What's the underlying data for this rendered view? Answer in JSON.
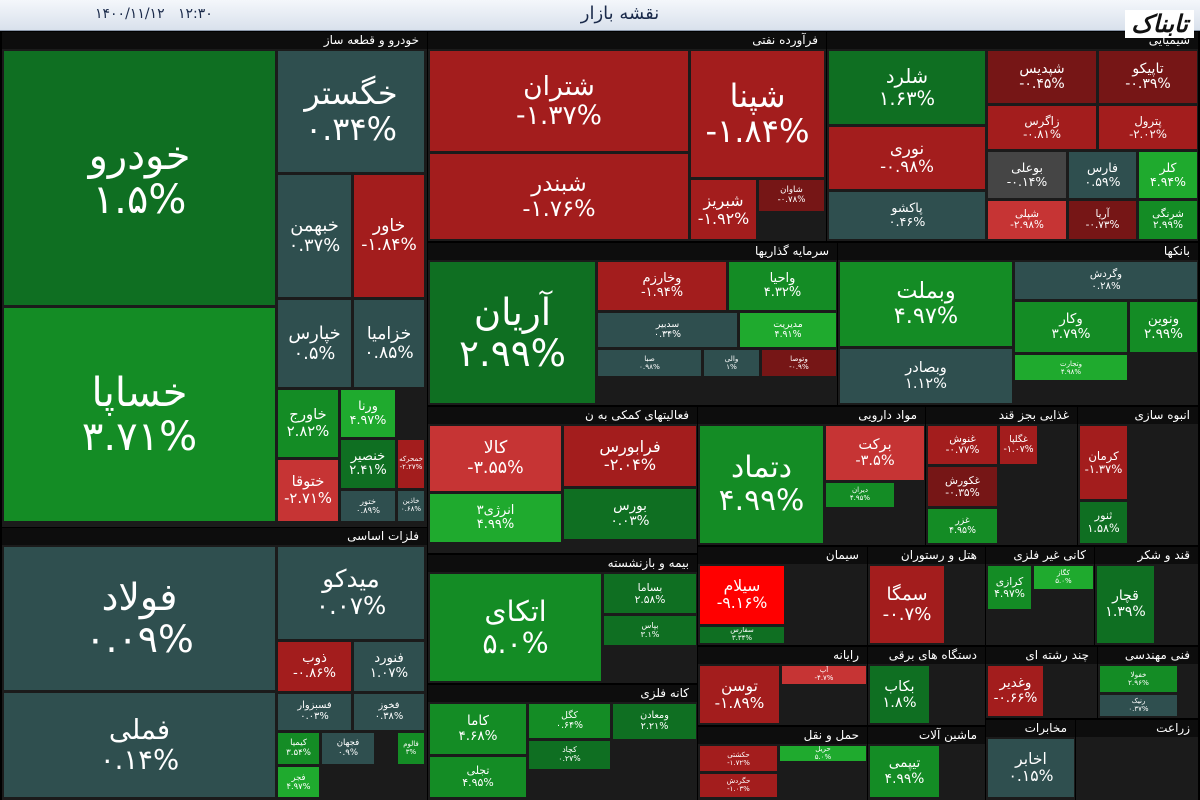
{
  "header": {
    "title": "نقشه بازار",
    "datetime": "۱۴۰۰/۱۱/۱۲   ۱۲:۳۰",
    "logo": "تابناک"
  },
  "sectors": [
    {
      "name": "خودرو و قطعه ساز",
      "tiles": [
        {
          "symbol": "خودرو",
          "change": "۱.۵%"
        },
        {
          "symbol": "خساپا",
          "change": "۳.۷۱%"
        },
        {
          "symbol": "خگستر",
          "change": "۰.۳۴%"
        },
        {
          "symbol": "خبهمن",
          "change": "۰.۳۷%"
        },
        {
          "symbol": "خاور",
          "change": "-۱.۸۴%"
        },
        {
          "symbol": "خپارس",
          "change": "۰.۵%"
        },
        {
          "symbol": "خزامیا",
          "change": "۰.۸۵%"
        },
        {
          "symbol": "خاورج",
          "change": "۲.۸۲%"
        },
        {
          "symbol": "ورنا",
          "change": "۴.۹۷%"
        },
        {
          "symbol": "خنصیر",
          "change": "۲.۴۱%"
        },
        {
          "symbol": "خمحرکه",
          "change": "-۲.۲۷%"
        },
        {
          "symbol": "ختوقا",
          "change": "-۲.۷۱%"
        },
        {
          "symbol": "ختور",
          "change": "۰.۸۹%"
        },
        {
          "symbol": "خاذین",
          "change": "۰.۶۸%"
        }
      ]
    },
    {
      "name": "فلزات اساسی",
      "tiles": [
        {
          "symbol": "فولاد",
          "change": "۰.۰۹%"
        },
        {
          "symbol": "فملی",
          "change": "۰.۱۴%"
        },
        {
          "symbol": "میدکو",
          "change": "۰.۰۷%"
        },
        {
          "symbol": "ذوب",
          "change": "-۰.۸۶%"
        },
        {
          "symbol": "فنورد",
          "change": "۱.۰۷%"
        },
        {
          "symbol": "فسبزوار",
          "change": "۰.۰۳%"
        },
        {
          "symbol": "فخوز",
          "change": "۰.۳۸%"
        },
        {
          "symbol": "کیمیا",
          "change": "۳.۵۴%"
        },
        {
          "symbol": "فجهان",
          "change": "۰.۹%"
        },
        {
          "symbol": "فالوم",
          "change": "۳%"
        },
        {
          "symbol": "فجر",
          "change": "۴.۹۷%"
        }
      ]
    },
    {
      "name": "فرآورده نفتی",
      "tiles": [
        {
          "symbol": "شتران",
          "change": "-۱.۳۷%"
        },
        {
          "symbol": "شبندر",
          "change": "-۱.۷۶%"
        },
        {
          "symbol": "شپنا",
          "change": "-۱.۸۴%"
        },
        {
          "symbol": "شبریز",
          "change": "-۱.۹۲%"
        },
        {
          "symbol": "شاوان",
          "change": "-۰.۷۸%"
        }
      ]
    },
    {
      "name": "شیمیایی",
      "tiles": [
        {
          "symbol": "شلرد",
          "change": "۱.۶۳%"
        },
        {
          "symbol": "نوری",
          "change": "-۰.۹۸%"
        },
        {
          "symbol": "پاکشو",
          "change": "۰.۴۶%"
        },
        {
          "symbol": "شپدیس",
          "change": "-۰.۴۵%"
        },
        {
          "symbol": "تاپیکو",
          "change": "-۰.۳۹%"
        },
        {
          "symbol": "زاگرس",
          "change": "-۰.۸۱%"
        },
        {
          "symbol": "پترول",
          "change": "-۲.۰۲%"
        },
        {
          "symbol": "بوعلی",
          "change": "-۰.۱۴%"
        },
        {
          "symbol": "فارس",
          "change": "۰.۵۹%"
        },
        {
          "symbol": "کلر",
          "change": "۴.۹۴%"
        },
        {
          "symbol": "شپلی",
          "change": "-۲.۹۸%"
        },
        {
          "symbol": "آریا",
          "change": "-۰.۷۳%"
        },
        {
          "symbol": "شرنگی",
          "change": "۲.۹۹%"
        }
      ]
    },
    {
      "name": "سرمایه گذاریها",
      "tiles": [
        {
          "symbol": "آریان",
          "change": "۲.۹۹%"
        },
        {
          "symbol": "وخارزم",
          "change": "-۱.۹۴%"
        },
        {
          "symbol": "واحیا",
          "change": "۴.۳۲%"
        },
        {
          "symbol": "سدبیر",
          "change": "۰.۳۴%"
        },
        {
          "symbol": "مدیریت",
          "change": "۴.۹۱%"
        },
        {
          "symbol": "صبا",
          "change": "۰.۹۸%"
        },
        {
          "symbol": "والی",
          "change": "۱%"
        },
        {
          "symbol": "وتوصا",
          "change": "-۰.۹%"
        }
      ]
    },
    {
      "name": "بانکها",
      "tiles": [
        {
          "symbol": "وبملت",
          "change": "۴.۹۷%"
        },
        {
          "symbol": "وبصادر",
          "change": "۱.۱۲%"
        },
        {
          "symbol": "وگردش",
          "change": "۰.۲۸%"
        },
        {
          "symbol": "وکار",
          "change": "۳.۷۹%"
        },
        {
          "symbol": "ونوین",
          "change": "۲.۹۹%"
        },
        {
          "symbol": "وتجارت",
          "change": "۴.۹۸%"
        }
      ]
    },
    {
      "name": "فعالیتهای کمکی به ن",
      "tiles": [
        {
          "symbol": "کالا",
          "change": "-۳.۵۵%"
        },
        {
          "symbol": "فرابورس",
          "change": "-۲.۰۴%"
        },
        {
          "symbol": "انرژی۳",
          "change": "۴.۹۹%"
        },
        {
          "symbol": "بورس",
          "change": "۰.۰۳%"
        }
      ]
    },
    {
      "name": "بیمه و بازنشسته",
      "tiles": [
        {
          "symbol": "اتکای",
          "change": "۵.۰%"
        },
        {
          "symbol": "بساما",
          "change": "۲.۵۸%"
        },
        {
          "symbol": "بپاس",
          "change": "۳.۱%"
        }
      ]
    },
    {
      "name": "کانه فلزی",
      "tiles": [
        {
          "symbol": "کاما",
          "change": "۴.۶۸%"
        },
        {
          "symbol": "کگل",
          "change": "۰.۶۴%"
        },
        {
          "symbol": "ومعادن",
          "change": "۲.۲۱%"
        },
        {
          "symbol": "کچاد",
          "change": "۰.۲۷%"
        },
        {
          "symbol": "تجلی",
          "change": "۴.۹۵%"
        }
      ]
    },
    {
      "name": "مواد دارویی",
      "tiles": [
        {
          "symbol": "دتماد",
          "change": "۴.۹۹%"
        },
        {
          "symbol": "برکت",
          "change": "-۳.۵%"
        },
        {
          "symbol": "دیران",
          "change": "۴.۹۵%"
        }
      ]
    },
    {
      "name": "غذایی بجز قند",
      "tiles": [
        {
          "symbol": "غنوش",
          "change": "-۰.۷۷%"
        },
        {
          "symbol": "غگلپا",
          "change": "-۱.۰۷%"
        },
        {
          "symbol": "غکورش",
          "change": "-۰.۳۵%"
        },
        {
          "symbol": "غزر",
          "change": "۴.۹۵%"
        }
      ]
    },
    {
      "name": "انبوه سازی",
      "tiles": [
        {
          "symbol": "کرمان",
          "change": "-۱.۳۷%"
        },
        {
          "symbol": "ثنور",
          "change": "۱.۵۸%"
        }
      ]
    },
    {
      "name": "سیمان",
      "tiles": [
        {
          "symbol": "سیلام",
          "change": "-۹.۱۶%"
        },
        {
          "symbol": "سفارس",
          "change": "۳.۳۴%"
        }
      ]
    },
    {
      "name": "هتل و رستوران",
      "tiles": [
        {
          "symbol": "سمگا",
          "change": "-۰.۷%"
        }
      ]
    },
    {
      "name": "کانی غیر فلزی",
      "tiles": [
        {
          "symbol": "کرازی",
          "change": "۴.۹۷%"
        },
        {
          "symbol": "کگاز",
          "change": "۵.۰%"
        }
      ]
    },
    {
      "name": "قند و شکر",
      "tiles": [
        {
          "symbol": "قچار",
          "change": "۱.۳۹%"
        }
      ]
    },
    {
      "name": "رایانه",
      "tiles": [
        {
          "symbol": "توسن",
          "change": "-۱.۸۹%"
        },
        {
          "symbol": "آپ",
          "change": "-۴.۷%"
        }
      ]
    },
    {
      "name": "دستگاه های برقی",
      "tiles": [
        {
          "symbol": "بکاب",
          "change": "۱.۸%"
        }
      ]
    },
    {
      "name": "چند رشته ای",
      "tiles": [
        {
          "symbol": "وغدیر",
          "change": "-۰.۶۶%"
        }
      ]
    },
    {
      "name": "فنی مهندسی",
      "tiles": [
        {
          "symbol": "خفولا",
          "change": "۲.۹۶%"
        },
        {
          "symbol": "رنیک",
          "change": "۰.۳۷%"
        }
      ]
    },
    {
      "name": "حمل و نقل",
      "tiles": [
        {
          "symbol": "حکشتی",
          "change": "-۱.۷۲%"
        },
        {
          "symbol": "حگردش",
          "change": "-۱.۰۳%"
        },
        {
          "symbol": "حریل",
          "change": "۵.۰%"
        }
      ]
    },
    {
      "name": "ماشین آلات",
      "tiles": [
        {
          "symbol": "تیپمی",
          "change": "۴.۹۹%"
        }
      ]
    },
    {
      "name": "مخابرات",
      "tiles": [
        {
          "symbol": "اخابر",
          "change": "۰.۱۵%"
        }
      ]
    },
    {
      "name": "زراعت",
      "tiles": []
    }
  ]
}
